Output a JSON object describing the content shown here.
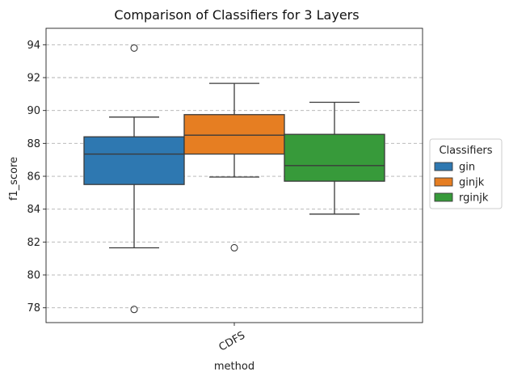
{
  "chart_data": {
    "type": "box",
    "title": "Comparison of Classifiers for 3 Layers",
    "xlabel": "method",
    "ylabel": "f1_score",
    "categories": [
      "CDFS"
    ],
    "ylim": [
      77.1,
      95.0
    ],
    "yticks": [
      78,
      80,
      82,
      84,
      86,
      88,
      90,
      92,
      94
    ],
    "grid": "horizontal dashed",
    "legend": {
      "title": "Classifiers",
      "placement": "right outside",
      "entries": [
        "gin",
        "ginjk",
        "rginjk"
      ]
    },
    "series": [
      {
        "name": "gin",
        "color": "#2e78b1",
        "q1": 85.5,
        "median": 87.35,
        "q3": 88.4,
        "whisker_low": 81.65,
        "whisker_high": 89.6,
        "outliers": [
          93.8,
          77.9
        ]
      },
      {
        "name": "ginjk",
        "color": "#e67e22",
        "q1": 87.35,
        "median": 88.5,
        "q3": 89.75,
        "whisker_low": 85.95,
        "whisker_high": 91.65,
        "outliers": [
          81.65
        ]
      },
      {
        "name": "rginjk",
        "color": "#379a3a",
        "q1": 85.7,
        "median": 86.65,
        "q3": 88.55,
        "whisker_low": 83.7,
        "whisker_high": 90.5,
        "outliers": []
      }
    ]
  }
}
